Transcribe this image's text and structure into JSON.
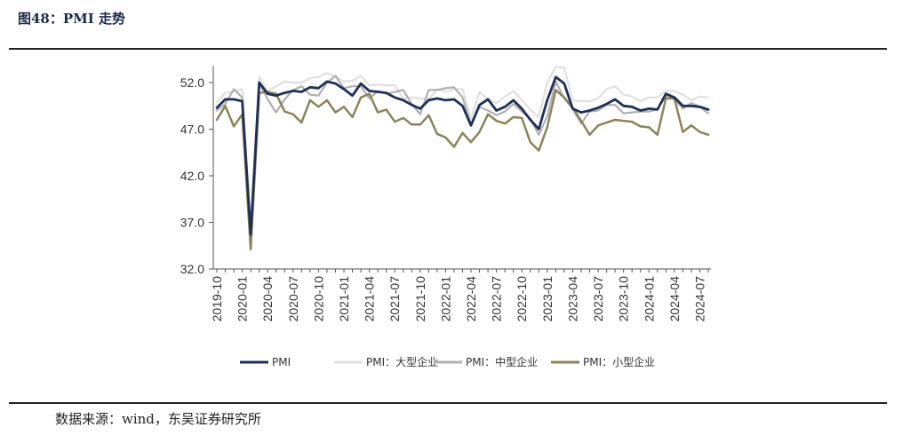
{
  "header": {
    "title": "图48：PMI 走势"
  },
  "footer": {
    "source": "数据来源：wind，东吴证券研究所"
  },
  "chart_data": {
    "type": "line",
    "title": "",
    "xlabel": "",
    "ylabel": "",
    "ylim": [
      32.0,
      54.0
    ],
    "yticks": [
      "32.0",
      "37.0",
      "42.0",
      "47.0",
      "52.0"
    ],
    "x": [
      "2019-10",
      "2019-11",
      "2019-12",
      "2020-01",
      "2020-02",
      "2020-03",
      "2020-04",
      "2020-05",
      "2020-06",
      "2020-07",
      "2020-08",
      "2020-09",
      "2020-10",
      "2020-11",
      "2020-12",
      "2021-01",
      "2021-02",
      "2021-03",
      "2021-04",
      "2021-05",
      "2021-06",
      "2021-07",
      "2021-08",
      "2021-09",
      "2021-10",
      "2021-11",
      "2021-12",
      "2022-01",
      "2022-02",
      "2022-03",
      "2022-04",
      "2022-05",
      "2022-06",
      "2022-07",
      "2022-08",
      "2022-09",
      "2022-10",
      "2022-11",
      "2022-12",
      "2023-01",
      "2023-02",
      "2023-03",
      "2023-04",
      "2023-05",
      "2023-06",
      "2023-07",
      "2023-08",
      "2023-09",
      "2023-10",
      "2023-11",
      "2023-12",
      "2024-01",
      "2024-02",
      "2024-03",
      "2024-04",
      "2024-05",
      "2024-06",
      "2024-07",
      "2024-08"
    ],
    "xticks": [
      "2019-10",
      "2020-01",
      "2020-04",
      "2020-07",
      "2020-10",
      "2021-01",
      "2021-04",
      "2021-07",
      "2021-10",
      "2022-01",
      "2022-04",
      "2022-07",
      "2022-10",
      "2023-01",
      "2023-04",
      "2023-07",
      "2023-10",
      "2024-01",
      "2024-04",
      "2024-07"
    ],
    "series": [
      {
        "name": "PMI",
        "color": "#1f3056",
        "width": 2.8,
        "values": [
          49.3,
          50.2,
          50.2,
          50.0,
          35.7,
          52.0,
          50.8,
          50.6,
          50.9,
          51.1,
          51.0,
          51.5,
          51.4,
          52.1,
          51.9,
          51.3,
          50.6,
          51.9,
          51.1,
          51.0,
          50.9,
          50.4,
          50.1,
          49.6,
          49.2,
          50.1,
          50.3,
          50.1,
          50.2,
          49.5,
          47.4,
          49.6,
          50.2,
          49.0,
          49.4,
          50.1,
          49.2,
          48.0,
          47.0,
          50.1,
          52.6,
          51.9,
          49.2,
          48.8,
          49.0,
          49.3,
          49.7,
          50.2,
          49.5,
          49.4,
          49.0,
          49.2,
          49.1,
          50.8,
          50.4,
          49.5,
          49.5,
          49.4,
          49.1
        ]
      },
      {
        "name": "PMI：大型企业",
        "color": "#e0e0e0",
        "width": 2.2,
        "values": [
          49.9,
          50.9,
          51.0,
          51.3,
          36.5,
          52.6,
          51.1,
          51.6,
          52.1,
          52.0,
          52.0,
          52.5,
          52.6,
          53.0,
          52.7,
          52.1,
          52.2,
          52.7,
          51.7,
          51.8,
          51.7,
          51.7,
          50.3,
          50.4,
          50.3,
          50.2,
          51.3,
          51.0,
          51.3,
          51.3,
          48.1,
          51.0,
          50.2,
          49.8,
          50.5,
          51.1,
          50.1,
          49.1,
          48.3,
          52.0,
          53.7,
          53.6,
          50.1,
          50.0,
          50.0,
          50.3,
          51.3,
          51.6,
          50.7,
          50.5,
          50.0,
          50.4,
          50.4,
          51.1,
          51.1,
          50.7,
          50.1,
          50.5,
          50.4
        ]
      },
      {
        "name": "PMI：中型企业",
        "color": "#b0b0b0",
        "width": 2.2,
        "values": [
          49.0,
          49.7,
          51.3,
          50.4,
          35.5,
          52.0,
          50.2,
          48.8,
          50.2,
          51.2,
          51.6,
          50.7,
          50.6,
          52.0,
          52.7,
          51.4,
          51.6,
          51.6,
          50.3,
          51.1,
          50.8,
          51.0,
          51.2,
          49.7,
          48.6,
          51.2,
          51.2,
          51.4,
          51.5,
          50.4,
          47.5,
          49.4,
          49.0,
          48.5,
          48.9,
          49.7,
          48.9,
          48.1,
          46.4,
          48.4,
          52.1,
          50.3,
          49.2,
          47.6,
          48.9,
          49.0,
          49.6,
          49.6,
          48.7,
          48.8,
          48.9,
          48.9,
          49.1,
          50.6,
          50.2,
          49.2,
          49.8,
          49.4,
          48.7
        ]
      },
      {
        "name": "PMI：小型企业",
        "color": "#8c8459",
        "width": 2.5,
        "values": [
          48.0,
          49.5,
          47.3,
          48.6,
          34.1,
          50.9,
          51.0,
          50.8,
          48.9,
          48.6,
          47.7,
          50.1,
          49.4,
          50.1,
          48.8,
          49.4,
          48.3,
          50.4,
          50.8,
          48.8,
          49.1,
          47.8,
          48.2,
          47.5,
          47.5,
          48.5,
          46.5,
          46.1,
          45.1,
          46.6,
          45.6,
          46.7,
          48.6,
          47.9,
          47.6,
          48.3,
          48.2,
          45.6,
          44.7,
          47.2,
          51.2,
          50.4,
          49.3,
          47.9,
          46.4,
          47.4,
          47.7,
          48.0,
          47.9,
          47.8,
          47.3,
          47.2,
          46.4,
          50.3,
          50.3,
          46.7,
          47.4,
          46.7,
          46.4
        ]
      }
    ],
    "legend": {
      "position": "bottom"
    }
  }
}
